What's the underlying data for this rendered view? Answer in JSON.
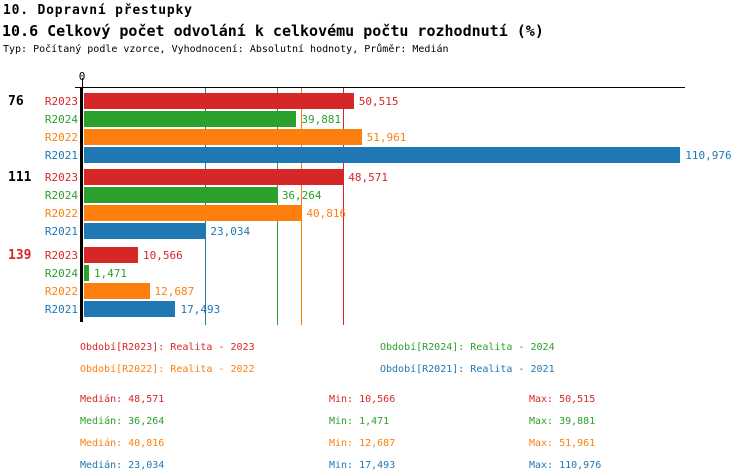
{
  "header": {
    "title": "10. Dopravní přestupky",
    "subtitle": "10.6 Celkový počet odvolání k celkovému počtu rozhodnutí (%)",
    "meta": "Typ: Počítaný podle vzorce, Vyhodnocení: Absolutní hodnoty, Průměr: Medián"
  },
  "colors": {
    "group_label": "#000000",
    "group_label_highlight": "#d62728",
    "axis": "#000000",
    "background": "#ffffff"
  },
  "chart_data": {
    "type": "bar",
    "orientation": "horizontal",
    "title": "10.6 Celkový počet odvolání k celkovému počtu rozhodnutí (%)",
    "axis": {
      "origin_tick": "0",
      "x_min": 0,
      "x_max": 110.976,
      "unit": "%"
    },
    "grid": "median-lines-only",
    "legend_position": "below-two-columns",
    "series": [
      {
        "id": "R2023",
        "color": "#d62728",
        "legend": "Období[R2023]: Realita - 2023",
        "median": 48.571,
        "min": 10.566,
        "max": 50.515,
        "median_display": "48,571",
        "min_display": "10,566",
        "max_display": "50,515"
      },
      {
        "id": "R2024",
        "color": "#2ca02c",
        "legend": "Období[R2024]: Realita - 2024",
        "median": 36.264,
        "min": 1.471,
        "max": 39.881,
        "median_display": "36,264",
        "min_display": "1,471",
        "max_display": "39,881"
      },
      {
        "id": "R2022",
        "color": "#ff7f0e",
        "legend": "Období[R2022]: Realita - 2022",
        "median": 40.816,
        "min": 12.687,
        "max": 51.961,
        "median_display": "40,816",
        "min_display": "12,687",
        "max_display": "51,961"
      },
      {
        "id": "R2021",
        "color": "#1f77b4",
        "legend": "Období[R2021]: Realita - 2021",
        "median": 23.034,
        "min": 17.493,
        "max": 110.976,
        "median_display": "23,034",
        "min_display": "17,493",
        "max_display": "110,976"
      }
    ],
    "groups": [
      {
        "label": "76",
        "highlight": false,
        "values": [
          50.515,
          39.881,
          51.961,
          110.976
        ],
        "displays": [
          "50,515",
          "39,881",
          "51,961",
          "110,976"
        ]
      },
      {
        "label": "111",
        "highlight": false,
        "values": [
          48.571,
          36.264,
          40.816,
          23.034
        ],
        "displays": [
          "48,571",
          "36,264",
          "40,816",
          "23,034"
        ]
      },
      {
        "label": "139",
        "highlight": true,
        "values": [
          10.566,
          1.471,
          12.687,
          17.493
        ],
        "displays": [
          "10,566",
          "1,471",
          "12,687",
          "17,493"
        ]
      }
    ],
    "median_lines": [
      {
        "series": "R2021",
        "value": 23.034
      },
      {
        "series": "R2024",
        "value": 36.264
      },
      {
        "series": "R2022",
        "value": 40.816
      },
      {
        "series": "R2023",
        "value": 48.571
      }
    ],
    "stats_labels": {
      "median": "Medián",
      "min": "Min",
      "max": "Max"
    }
  }
}
